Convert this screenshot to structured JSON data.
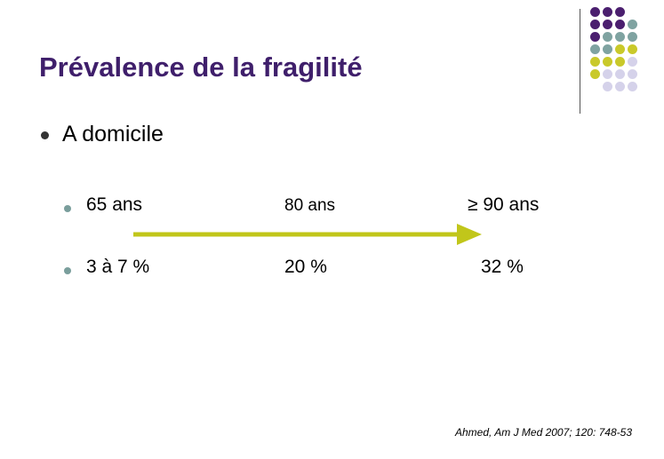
{
  "slide": {
    "title": "Prévalence de la fragilité",
    "bullet": "A domicile",
    "rows": [
      {
        "cells": [
          "65 ans",
          "80 ans",
          "≥ 90 ans"
        ]
      },
      {
        "cells": [
          "3 à 7 %",
          "20 %",
          "32 %"
        ]
      }
    ],
    "citation": "Ahmed, Am J Med 2007; 120: 748-53"
  },
  "colors": {
    "title": "#3f1f6b",
    "arrow": "#c1c61a",
    "dot_purple": "#4b1f6f",
    "dot_teal": "#7fa3a1",
    "dot_yellow": "#c9c92a",
    "dot_lavender": "#d5d2ea"
  },
  "decoration": {
    "dot_grid": [
      [
        "dot_purple",
        "dot_purple",
        "dot_purple",
        null
      ],
      [
        "dot_purple",
        "dot_purple",
        "dot_purple",
        "dot_teal"
      ],
      [
        "dot_purple",
        "dot_teal",
        "dot_teal",
        "dot_teal"
      ],
      [
        "dot_teal",
        "dot_teal",
        "dot_yellow",
        "dot_yellow"
      ],
      [
        "dot_yellow",
        "dot_yellow",
        "dot_yellow",
        "dot_lavender"
      ],
      [
        "dot_yellow",
        "dot_lavender",
        "dot_lavender",
        "dot_lavender"
      ],
      [
        null,
        "dot_lavender",
        "dot_lavender",
        "dot_lavender"
      ]
    ]
  }
}
